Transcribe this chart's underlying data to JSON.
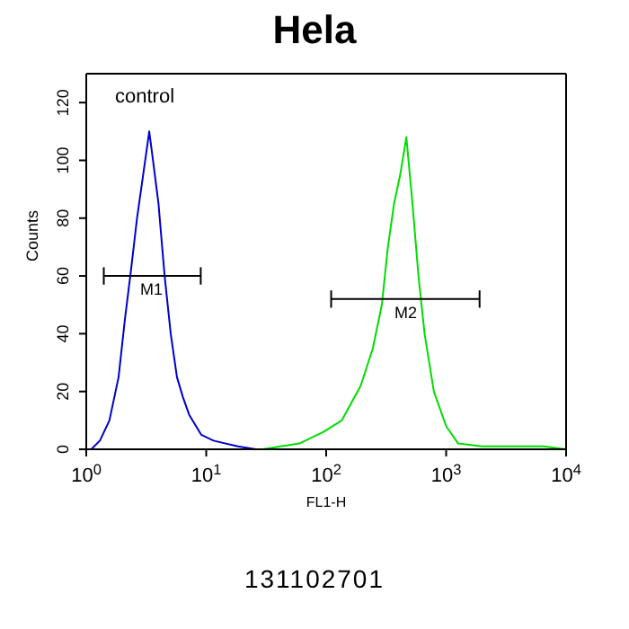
{
  "chart_data": {
    "type": "line",
    "title": "Hela",
    "xlabel": "FL1-H",
    "ylabel": "Counts",
    "log": "x",
    "grid": false,
    "legend": false,
    "marker": "none",
    "line_style": "solid",
    "xlim": [
      1,
      10000
    ],
    "xticks": [
      {
        "value": 1,
        "label": "10$^{0}$"
      },
      {
        "value": 10,
        "label": "10$^{1}$"
      },
      {
        "value": 100,
        "label": "10$^{2}$"
      },
      {
        "value": 1000,
        "label": "10$^{3}$"
      },
      {
        "value": 10000,
        "label": "10$^{4}$"
      }
    ],
    "ylim": [
      0,
      130
    ],
    "yticks": [
      0,
      20,
      40,
      60,
      80,
      100,
      120
    ],
    "series": [
      {
        "color": "#0000cc",
        "x": [
          1.1,
          1.3,
          1.56,
          1.86,
          2.1,
          2.36,
          2.65,
          2.98,
          3.35,
          3.6,
          4,
          4.5,
          5.06,
          5.7,
          6.4,
          7.2,
          9.1,
          11.5,
          18.4,
          26
        ],
        "values": [
          0,
          3,
          10,
          25,
          45,
          62,
          80,
          95,
          110,
          100,
          85,
          60,
          40,
          25,
          18,
          12,
          5,
          3,
          1,
          0
        ]
      },
      {
        "color": "#00dd00",
        "x": [
          1,
          29.4,
          59.7,
          95,
          135,
          194,
          245,
          291,
          327,
          368,
          414,
          466,
          524,
          588,
          661,
          790,
          1000,
          1260,
          2000,
          6500,
          10000
        ],
        "values": [
          0,
          0,
          2,
          6,
          10,
          22,
          35,
          50,
          70,
          85,
          95,
          108,
          85,
          60,
          40,
          20,
          8,
          2,
          1,
          1,
          0
        ]
      },
      {
        "color": "#000000",
        "x": [
          1.4,
          9
        ],
        "values": [
          60,
          60
        ],
        "errors": [
          3,
          3
        ]
      },
      {
        "color": "#000000",
        "x": [
          110,
          1900
        ],
        "values": [
          52,
          52
        ],
        "errors": [
          3,
          3
        ]
      }
    ],
    "annotations": [
      "control",
      "131102701",
      {
        "text": "M1",
        "x": 3.5,
        "y": 60
      },
      {
        "text": "M2",
        "x": 460,
        "y": 52
      }
    ]
  }
}
